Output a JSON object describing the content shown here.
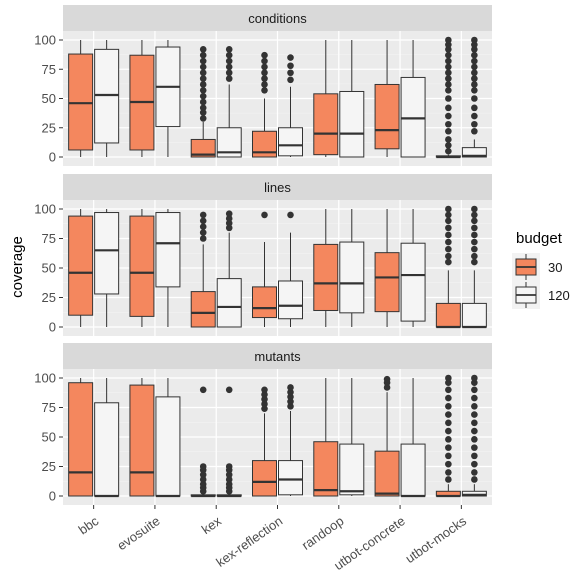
{
  "chart_data": {
    "type": "box",
    "ylabel": "coverage",
    "xlabel": "",
    "ylim": [
      0,
      100
    ],
    "yticks": [
      0,
      25,
      50,
      75,
      100
    ],
    "categories": [
      "bbc",
      "evosuite",
      "kex",
      "kex-reflection",
      "randoop",
      "utbot-concrete",
      "utbot-mocks"
    ],
    "legend": {
      "title": "budget",
      "placement": "right",
      "entries": [
        {
          "label": "30",
          "color": "#f4875e"
        },
        {
          "label": "120",
          "color": "#f5f5f5"
        }
      ]
    },
    "facets": [
      {
        "name": "conditions",
        "series": [
          {
            "name": "30",
            "boxes": [
              {
                "min": 0,
                "q1": 6,
                "median": 46,
                "q3": 88,
                "max": 100,
                "outliers": []
              },
              {
                "min": 0,
                "q1": 6,
                "median": 47,
                "q3": 87,
                "max": 100,
                "outliers": []
              },
              {
                "min": 0,
                "q1": 0,
                "median": 2,
                "q3": 15,
                "max": 30,
                "outliers": [
                  33,
                  38,
                  42,
                  47,
                  52,
                  57,
                  62,
                  67,
                  72,
                  77,
                  82,
                  87,
                  92
                ]
              },
              {
                "min": 0,
                "q1": 0,
                "median": 4,
                "q3": 22,
                "max": 50,
                "outliers": [
                  57,
                  62,
                  67,
                  72,
                  77,
                  82,
                  87
                ]
              },
              {
                "min": 0,
                "q1": 2,
                "median": 20,
                "q3": 54,
                "max": 100,
                "outliers": []
              },
              {
                "min": 0,
                "q1": 7,
                "median": 23,
                "q3": 62,
                "max": 100,
                "outliers": []
              },
              {
                "min": 0,
                "q1": 0,
                "median": 0,
                "q3": 1,
                "max": 2,
                "outliers": [
                  5,
                  10,
                  15,
                  22,
                  28,
                  35,
                  42,
                  50,
                  57,
                  62,
                  67,
                  72,
                  77,
                  82,
                  87,
                  92,
                  96,
                  100
                ]
              }
            ]
          },
          {
            "name": "120",
            "boxes": [
              {
                "min": 0,
                "q1": 12,
                "median": 53,
                "q3": 92,
                "max": 100,
                "outliers": []
              },
              {
                "min": 0,
                "q1": 26,
                "median": 60,
                "q3": 94,
                "max": 100,
                "outliers": []
              },
              {
                "min": 0,
                "q1": 0,
                "median": 4,
                "q3": 25,
                "max": 62,
                "outliers": [
                  67,
                  72,
                  77,
                  82,
                  87,
                  92
                ]
              },
              {
                "min": 0,
                "q1": 1,
                "median": 10,
                "q3": 25,
                "max": 60,
                "outliers": [
                  66,
                  72,
                  78,
                  85
                ]
              },
              {
                "min": 0,
                "q1": 0,
                "median": 20,
                "q3": 56,
                "max": 100,
                "outliers": []
              },
              {
                "min": 0,
                "q1": 0,
                "median": 33,
                "q3": 68,
                "max": 100,
                "outliers": []
              },
              {
                "min": 0,
                "q1": 0,
                "median": 1,
                "q3": 8,
                "max": 15,
                "outliers": [
                  22,
                  28,
                  35,
                  42,
                  50,
                  57,
                  62,
                  67,
                  72,
                  77,
                  82,
                  87,
                  92,
                  96,
                  100
                ]
              }
            ]
          }
        ]
      },
      {
        "name": "lines",
        "series": [
          {
            "name": "30",
            "boxes": [
              {
                "min": 0,
                "q1": 10,
                "median": 46,
                "q3": 94,
                "max": 100,
                "outliers": []
              },
              {
                "min": 0,
                "q1": 9,
                "median": 46,
                "q3": 94,
                "max": 100,
                "outliers": []
              },
              {
                "min": 0,
                "q1": 0,
                "median": 12,
                "q3": 30,
                "max": 70,
                "outliers": [
                  75,
                  80,
                  85,
                  90,
                  95
                ]
              },
              {
                "min": 0,
                "q1": 8,
                "median": 16,
                "q3": 34,
                "max": 72,
                "outliers": [
                  95
                ]
              },
              {
                "min": 0,
                "q1": 14,
                "median": 37,
                "q3": 70,
                "max": 100,
                "outliers": []
              },
              {
                "min": 0,
                "q1": 13,
                "median": 42,
                "q3": 63,
                "max": 100,
                "outliers": []
              },
              {
                "min": 0,
                "q1": 0,
                "median": 0,
                "q3": 20,
                "max": 48,
                "outliers": [
                  55,
                  60,
                  66,
                  72,
                  78,
                  84,
                  90,
                  95,
                  100
                ]
              }
            ]
          },
          {
            "name": "120",
            "boxes": [
              {
                "min": 0,
                "q1": 28,
                "median": 65,
                "q3": 97,
                "max": 100,
                "outliers": []
              },
              {
                "min": 0,
                "q1": 34,
                "median": 71,
                "q3": 97,
                "max": 100,
                "outliers": []
              },
              {
                "min": 0,
                "q1": 0,
                "median": 17,
                "q3": 41,
                "max": 80,
                "outliers": [
                  84,
                  88,
                  92,
                  96
                ]
              },
              {
                "min": 0,
                "q1": 7,
                "median": 18,
                "q3": 39,
                "max": 80,
                "outliers": [
                  95
                ]
              },
              {
                "min": 0,
                "q1": 12,
                "median": 37,
                "q3": 72,
                "max": 100,
                "outliers": []
              },
              {
                "min": 0,
                "q1": 5,
                "median": 44,
                "q3": 71,
                "max": 100,
                "outliers": []
              },
              {
                "min": 0,
                "q1": 0,
                "median": 0,
                "q3": 20,
                "max": 48,
                "outliers": [
                  55,
                  60,
                  66,
                  72,
                  78,
                  84,
                  90,
                  95,
                  100
                ]
              }
            ]
          }
        ]
      },
      {
        "name": "mutants",
        "series": [
          {
            "name": "30",
            "boxes": [
              {
                "min": 0,
                "q1": 0,
                "median": 20,
                "q3": 96,
                "max": 100,
                "outliers": []
              },
              {
                "min": 0,
                "q1": 0,
                "median": 20,
                "q3": 94,
                "max": 100,
                "outliers": []
              },
              {
                "min": 0,
                "q1": 0,
                "median": 0,
                "q3": 1,
                "max": 2,
                "outliers": [
                  4,
                  7,
                  10,
                  14,
                  18,
                  22,
                  25,
                  90
                ]
              },
              {
                "min": 0,
                "q1": 0,
                "median": 12,
                "q3": 30,
                "max": 70,
                "outliers": [
                  74,
                  78,
                  82,
                  86,
                  90
                ]
              },
              {
                "min": 0,
                "q1": 0,
                "median": 5,
                "q3": 46,
                "max": 100,
                "outliers": []
              },
              {
                "min": 0,
                "q1": 0,
                "median": 2,
                "q3": 38,
                "max": 88,
                "outliers": [
                  92,
                  96,
                  99
                ]
              },
              {
                "min": 0,
                "q1": 0,
                "median": 0,
                "q3": 4,
                "max": 10,
                "outliers": [
                  14,
                  20,
                  27,
                  34,
                  41,
                  48,
                  55,
                  62,
                  69,
                  76,
                  83,
                  90,
                  96,
                  100
                ]
              }
            ]
          },
          {
            "name": "120",
            "boxes": [
              {
                "min": 0,
                "q1": 0,
                "median": 0,
                "q3": 79,
                "max": 100,
                "outliers": []
              },
              {
                "min": 0,
                "q1": 0,
                "median": 0,
                "q3": 84,
                "max": 100,
                "outliers": []
              },
              {
                "min": 0,
                "q1": 0,
                "median": 0,
                "q3": 1,
                "max": 2,
                "outliers": [
                  4,
                  7,
                  10,
                  14,
                  18,
                  22,
                  25,
                  90
                ]
              },
              {
                "min": 0,
                "q1": 1,
                "median": 14,
                "q3": 30,
                "max": 72,
                "outliers": [
                  76,
                  80,
                  84,
                  88,
                  92
                ]
              },
              {
                "min": 0,
                "q1": 1,
                "median": 4,
                "q3": 44,
                "max": 100,
                "outliers": []
              },
              {
                "min": 0,
                "q1": 0,
                "median": 0,
                "q3": 44,
                "max": 100,
                "outliers": []
              },
              {
                "min": 0,
                "q1": 0,
                "median": 1,
                "q3": 4,
                "max": 10,
                "outliers": [
                  14,
                  20,
                  27,
                  34,
                  41,
                  48,
                  55,
                  62,
                  69,
                  76,
                  83,
                  90,
                  96,
                  100
                ]
              }
            ]
          }
        ]
      }
    ]
  }
}
